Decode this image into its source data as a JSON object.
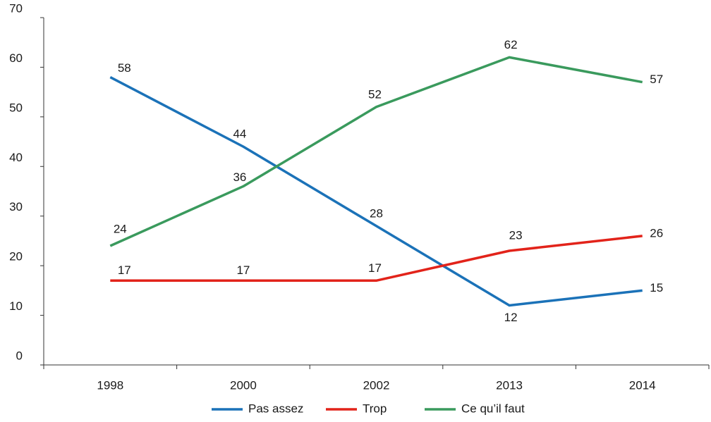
{
  "chart_data": {
    "type": "line",
    "categories": [
      "1998",
      "2000",
      "2002",
      "2013",
      "2014"
    ],
    "series": [
      {
        "name": "Pas assez",
        "color": "#1b72b8",
        "values": [
          58,
          44,
          28,
          12,
          15
        ]
      },
      {
        "name": "Trop",
        "color": "#e2231a",
        "values": [
          17,
          17,
          17,
          23,
          26
        ]
      },
      {
        "name": "Ce qu’il faut",
        "color": "#3a9a5d",
        "values": [
          24,
          36,
          52,
          62,
          57
        ]
      }
    ],
    "ylim": [
      0,
      70
    ],
    "yticks": [
      0,
      10,
      20,
      30,
      40,
      50,
      60,
      70
    ],
    "grid": false,
    "legend": "bottom"
  }
}
